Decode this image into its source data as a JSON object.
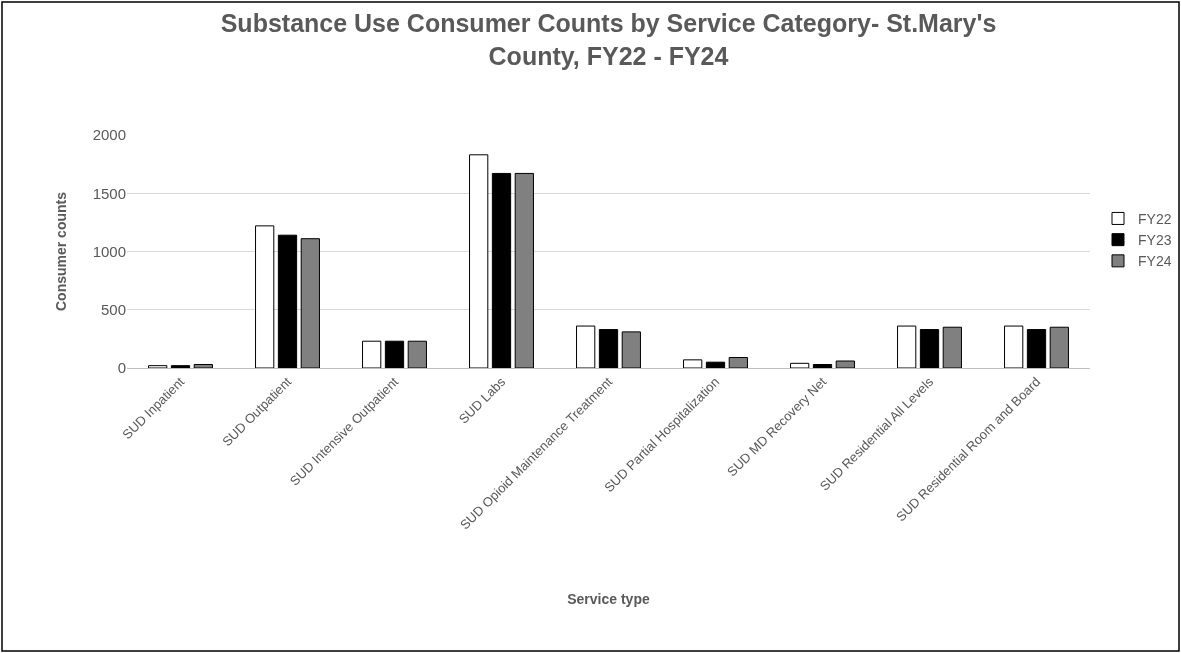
{
  "chart_data": {
    "type": "bar",
    "title": "Substance Use Consumer Counts by Service Category- St.Mary's County, FY22 - FY24",
    "xlabel": "Service type",
    "ylabel": "Consumer counts",
    "categories": [
      "SUD Inpatient",
      "SUD Outpatient",
      "SUD Intensive Outpatient",
      "SUD Labs",
      "SUD Opioid Maintenance Treatment",
      "SUD Partial Hospitalization",
      "SUD MD Recovery Net",
      "SUD Residential All Levels",
      "SUD Residential Room and Board"
    ],
    "series": [
      {
        "name": "FY22",
        "color": "#ffffff",
        "values": [
          20,
          1220,
          230,
          1830,
          360,
          70,
          40,
          360,
          360
        ]
      },
      {
        "name": "FY23",
        "color": "#000000",
        "values": [
          20,
          1140,
          230,
          1670,
          330,
          50,
          30,
          330,
          330
        ]
      },
      {
        "name": "FY24",
        "color": "#808080",
        "values": [
          30,
          1110,
          230,
          1670,
          310,
          90,
          60,
          350,
          350
        ]
      }
    ],
    "ylim": [
      0,
      2000
    ],
    "yticks": [
      0,
      500,
      1000,
      1500,
      2000
    ],
    "grid": "y",
    "legend": "right"
  }
}
